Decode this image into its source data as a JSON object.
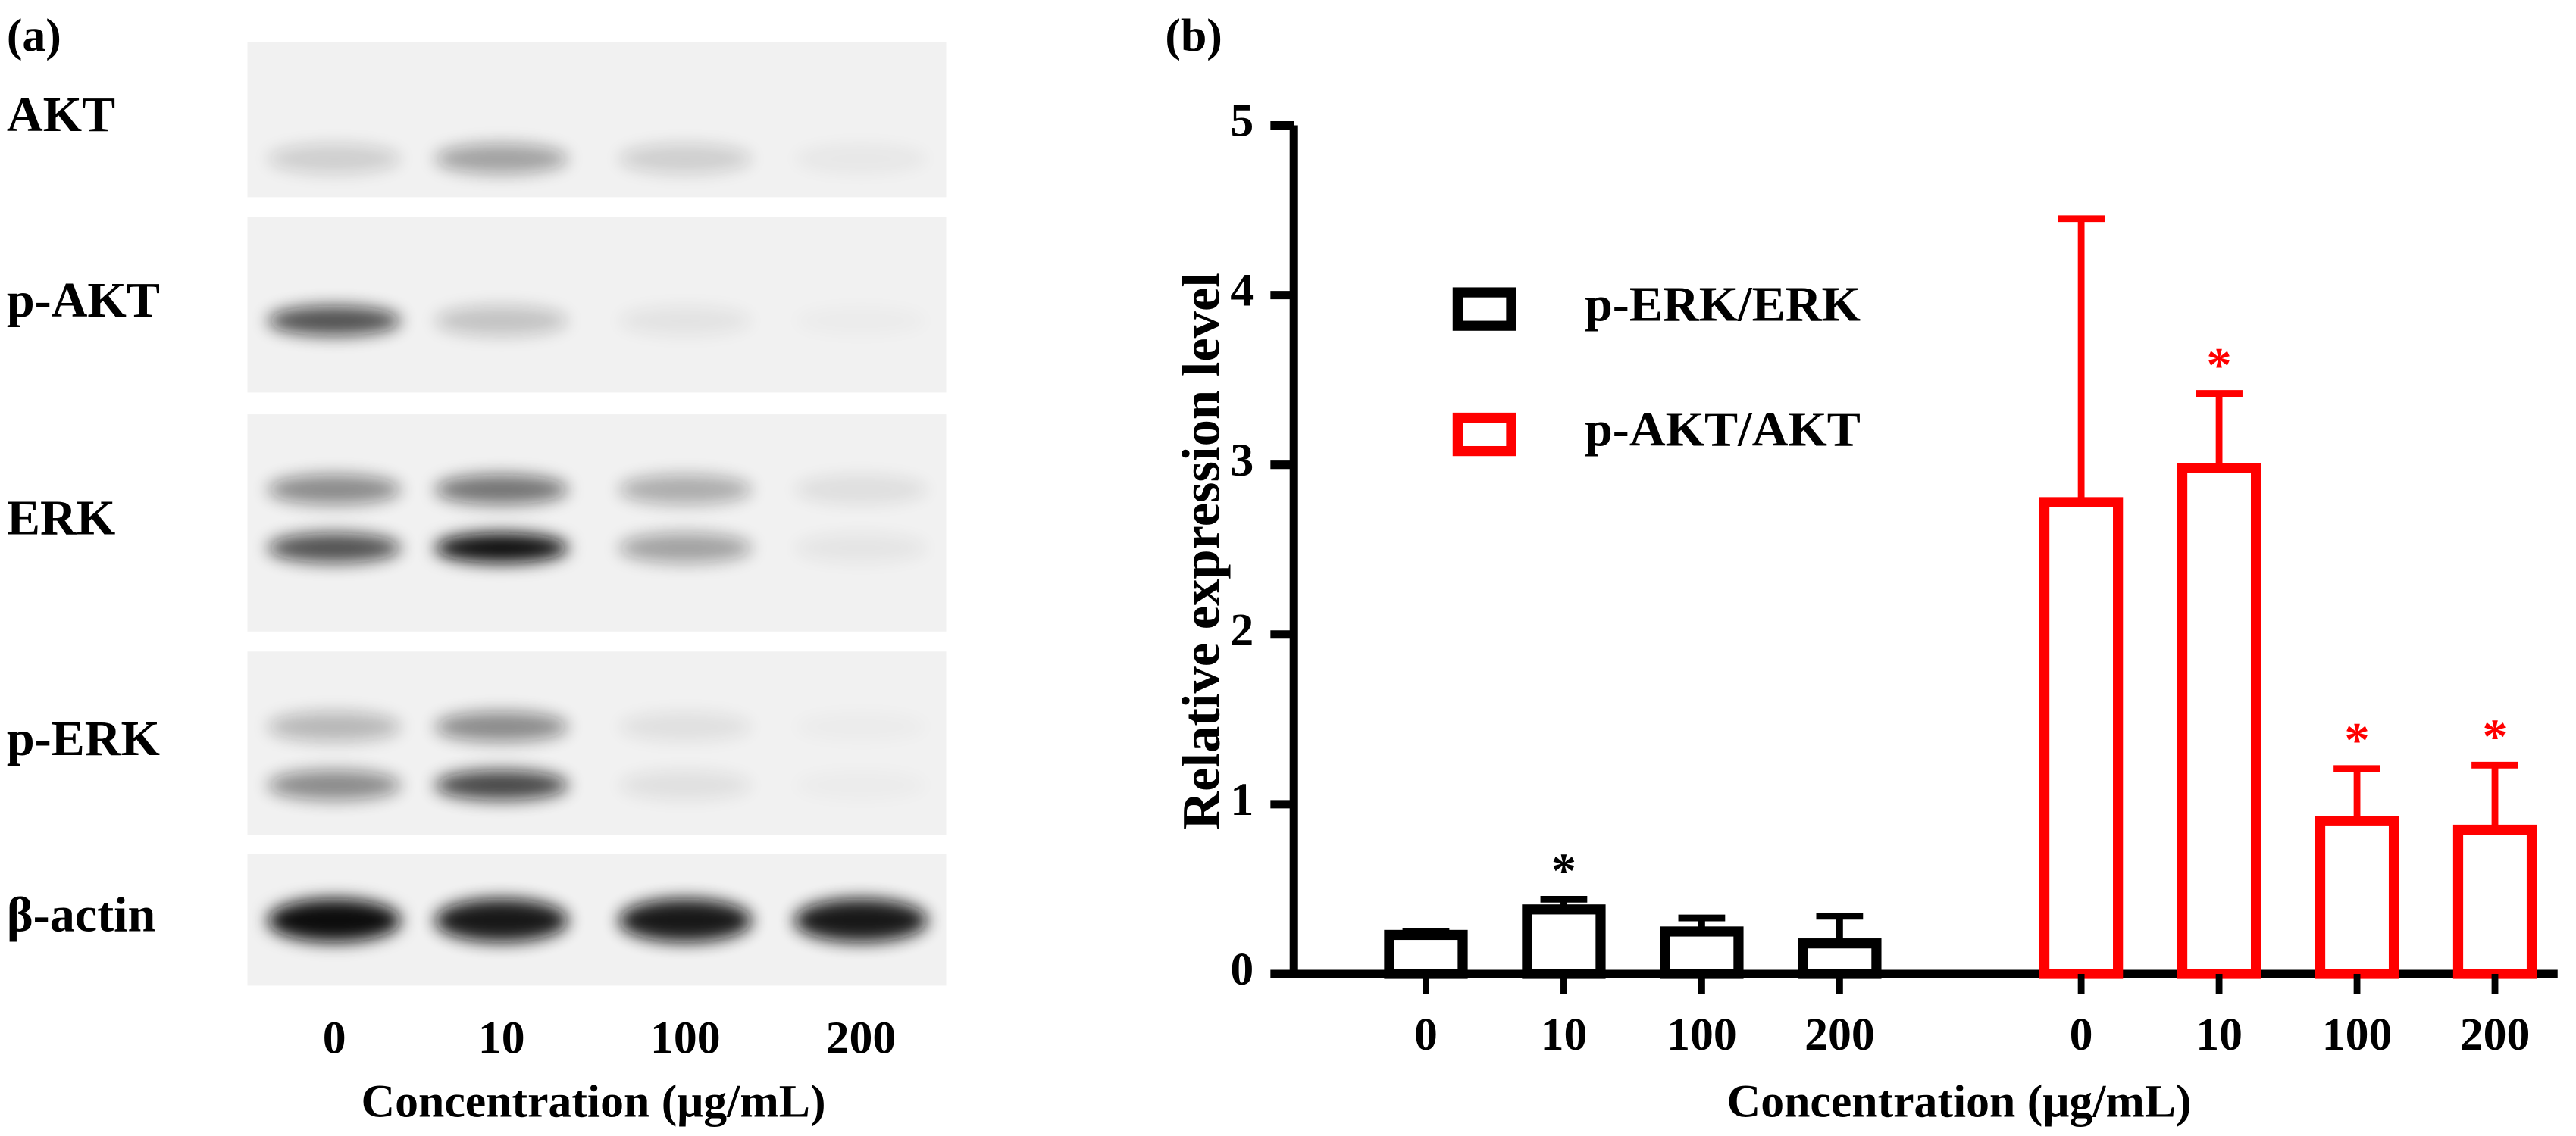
{
  "blot": {
    "label": "(a)",
    "rows": [
      "AKT",
      "p-AKT",
      "ERK",
      "p-ERK",
      "β-actin"
    ],
    "lanes": [
      "0",
      "10",
      "100",
      "200"
    ],
    "xlabel": "Concentration (μg/mL)"
  },
  "chart_data": {
    "type": "bar",
    "panel_label": "(b)",
    "ylabel": "Relative expression level",
    "xlabel": "Concentration (μg/mL)",
    "categories": [
      "0",
      "10",
      "100",
      "200"
    ],
    "ylim": [
      0,
      5
    ],
    "yticks": [
      0,
      1,
      2,
      3,
      4,
      5
    ],
    "series": [
      {
        "name": "p-ERK/ERK",
        "color": "#000000",
        "values": [
          0.23,
          0.38,
          0.25,
          0.18
        ],
        "errors": [
          0.02,
          0.06,
          0.08,
          0.16
        ],
        "significance": [
          null,
          "*",
          null,
          null
        ]
      },
      {
        "name": "p-AKT/AKT",
        "color": "#ff0000",
        "values": [
          2.78,
          2.98,
          0.9,
          0.85
        ],
        "errors": [
          1.67,
          0.44,
          0.31,
          0.38
        ],
        "significance": [
          null,
          "*",
          "*",
          "*"
        ]
      }
    ]
  }
}
